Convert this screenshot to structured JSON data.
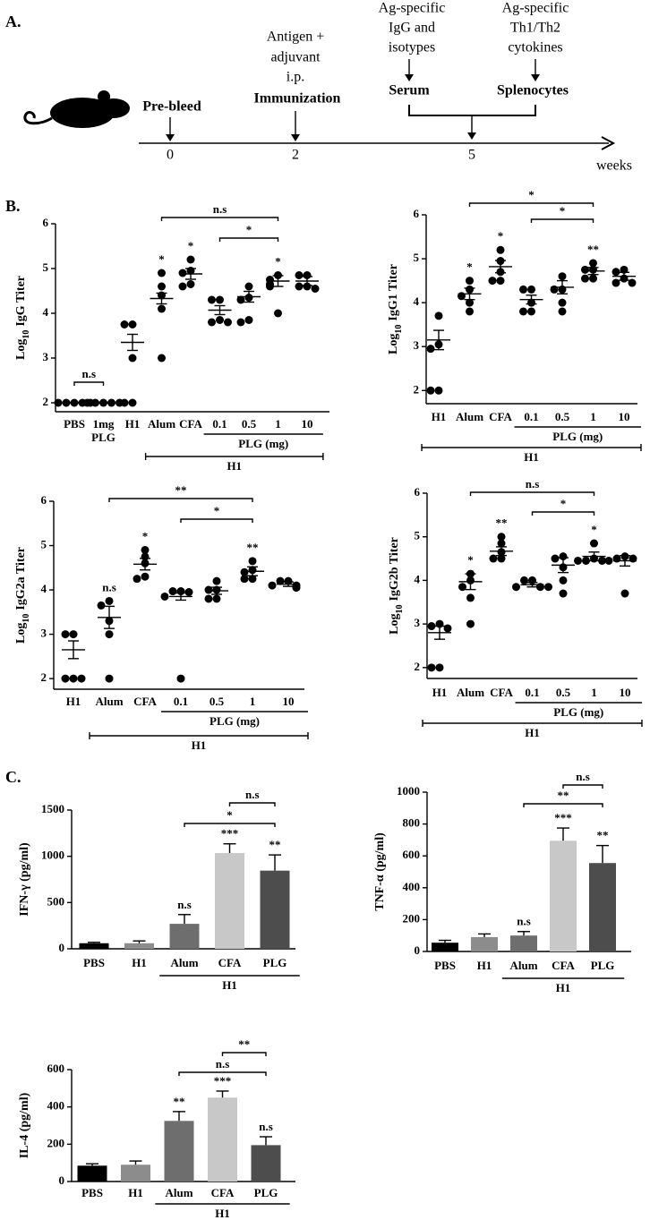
{
  "panel_labels": [
    "A.",
    "B.",
    "C."
  ],
  "diagram": {
    "events": [
      {
        "label": "Pre-bleed"
      },
      {
        "lines": [
          "Antigen +",
          "adjuvant",
          "i.p."
        ],
        "label": "Immunization"
      },
      {
        "lines": [
          "Ag-specific",
          "IgG and",
          "isotypes"
        ],
        "label": "Serum"
      },
      {
        "lines": [
          "Ag-specific",
          "Th1/Th2",
          "cytokines"
        ],
        "label": "Splenocytes"
      }
    ],
    "timeline": {
      "ticks": [
        0,
        2,
        5
      ],
      "unit": "weeks"
    }
  },
  "chart_data": [
    {
      "type": "dot",
      "ylabel_parts": [
        "Log",
        "10",
        "IgG Titer"
      ],
      "color": "#000000",
      "categories": [
        "PBS",
        "1mg PLG",
        "H1",
        "Alum",
        "CFA",
        "0.1",
        "0.5",
        "1",
        "10"
      ],
      "points": [
        [
          2,
          2,
          2,
          2,
          2
        ],
        [
          2,
          2,
          2,
          2,
          2
        ],
        [
          3.75,
          3.75,
          3.0,
          2,
          2
        ],
        [
          4.9,
          4.6,
          4.4,
          4.1,
          3.0
        ],
        [
          5.2,
          4.95,
          4.9,
          4.65,
          4.6
        ],
        [
          4.3,
          4.3,
          3.85,
          3.8,
          3.8
        ],
        [
          4.6,
          4.35,
          4.3,
          3.85,
          3.8
        ],
        [
          4.85,
          4.75,
          4.65,
          4.6,
          4.0
        ],
        [
          4.85,
          4.85,
          4.6,
          4.6,
          4.55
        ]
      ],
      "means": [
        2,
        2,
        3.35,
        4.33,
        4.88,
        4.07,
        4.37,
        4.72,
        4.72
      ],
      "sems": [
        0,
        0,
        0.18,
        0.12,
        0.12,
        0.1,
        0.12,
        0.12,
        0.1
      ],
      "stars": [
        null,
        null,
        null,
        "*",
        "*",
        null,
        null,
        "*",
        null
      ],
      "brackets": [
        {
          "from": 0,
          "to": 1,
          "label": "n.s"
        },
        {
          "from": 3,
          "to": 7,
          "label": "n.s"
        },
        {
          "from": 5,
          "to": 7,
          "label": "*"
        }
      ],
      "groups": [
        {
          "label": "PLG (mg)",
          "from": 5,
          "to": 8
        },
        {
          "label": "H1",
          "from": 3,
          "to": 8
        }
      ],
      "ylim": [
        1.8,
        6
      ],
      "yticks": [
        2,
        3,
        4,
        5,
        6
      ]
    },
    {
      "type": "dot",
      "ylabel_parts": [
        "Log",
        "10",
        "IgG1 Titer"
      ],
      "color": "#000000",
      "categories": [
        "H1",
        "Alum",
        "CFA",
        "0.1",
        "0.5",
        "1",
        "10"
      ],
      "points": [
        [
          3.7,
          3.05,
          2.95,
          2,
          2
        ],
        [
          4.5,
          4.3,
          4.15,
          4.0,
          3.8
        ],
        [
          5.2,
          4.95,
          4.7,
          4.5,
          4.5
        ],
        [
          4.3,
          4.3,
          4.0,
          3.8,
          3.8
        ],
        [
          4.6,
          4.3,
          4.3,
          4.0,
          3.8
        ],
        [
          4.9,
          4.75,
          4.75,
          4.55,
          4.55
        ],
        [
          4.75,
          4.7,
          4.55,
          4.45,
          4.45
        ]
      ],
      "means": [
        3.15,
        4.2,
        4.82,
        4.07,
        4.35,
        4.72,
        4.6
      ],
      "sems": [
        0.22,
        0.13,
        0.14,
        0.1,
        0.15,
        0.08,
        0.09
      ],
      "stars": [
        null,
        "*",
        "*",
        null,
        null,
        "**",
        null
      ],
      "brackets": [
        {
          "from": 1,
          "to": 5,
          "label": "*"
        },
        {
          "from": 3,
          "to": 5,
          "label": "*"
        }
      ],
      "groups": [
        {
          "label": "PLG (mg)",
          "from": 3,
          "to": 6
        },
        {
          "label": "H1",
          "from": 0,
          "to": 6
        }
      ],
      "ylim": [
        1.7,
        6
      ],
      "yticks": [
        2,
        3,
        4,
        5,
        6
      ]
    },
    {
      "type": "dot",
      "ylabel_parts": [
        "Log",
        "10",
        "IgG2a Titer"
      ],
      "color": "#000000",
      "categories": [
        "H1",
        "Alum",
        "CFA",
        "0.1",
        "0.5",
        "1",
        "10"
      ],
      "points": [
        [
          3.0,
          3.0,
          2,
          2,
          2
        ],
        [
          3.75,
          3.65,
          3.3,
          3.0,
          2.0
        ],
        [
          4.9,
          4.75,
          4.6,
          4.3,
          4.25
        ],
        [
          3.97,
          3.97,
          3.95,
          3.85,
          2.0
        ],
        [
          4.2,
          4.0,
          4.0,
          3.8,
          3.8
        ],
        [
          4.65,
          4.45,
          4.4,
          4.25,
          4.25
        ],
        [
          4.2,
          4.2,
          4.1,
          4.1,
          4.05
        ]
      ],
      "means": [
        2.65,
        3.38,
        4.58,
        3.85,
        3.98,
        4.42,
        4.13
      ],
      "sems": [
        0.2,
        0.25,
        0.13,
        0.08,
        0.08,
        0.1,
        0.05
      ],
      "stars": [
        null,
        "n.s",
        "*",
        null,
        null,
        "**",
        null
      ],
      "brackets": [
        {
          "from": 1,
          "to": 5,
          "label": "**"
        },
        {
          "from": 3,
          "to": 5,
          "label": "*"
        }
      ],
      "groups": [
        {
          "label": "PLG (mg)",
          "from": 3,
          "to": 6
        },
        {
          "label": "H1",
          "from": 1,
          "to": 6
        }
      ],
      "ylim": [
        1.76,
        6
      ],
      "yticks": [
        2,
        3,
        4,
        5,
        6
      ]
    },
    {
      "type": "dot",
      "ylabel_parts": [
        "Log",
        "10",
        "IgG2b Titer"
      ],
      "color": "#000000",
      "categories": [
        "H1",
        "Alum",
        "CFA",
        "0.1",
        "0.5",
        "1",
        "10"
      ],
      "points": [
        [
          3.0,
          2.95,
          2.9,
          2,
          2
        ],
        [
          4.15,
          4.0,
          3.85,
          3.6,
          3.0
        ],
        [
          5.0,
          4.85,
          4.65,
          4.5,
          4.5
        ],
        [
          4.0,
          4.0,
          3.85,
          3.85,
          3.85
        ],
        [
          4.55,
          4.5,
          4.3,
          4.0,
          3.7
        ],
        [
          4.85,
          4.5,
          4.45,
          4.45,
          4.45
        ],
        [
          4.55,
          4.5,
          4.5,
          4.45,
          3.7
        ]
      ],
      "means": [
        2.8,
        3.97,
        4.67,
        3.9,
        4.35,
        4.55,
        4.45
      ],
      "sems": [
        0.15,
        0.18,
        0.1,
        0.05,
        0.17,
        0.1,
        0.12
      ],
      "stars": [
        null,
        "*",
        "**",
        null,
        null,
        "*",
        null
      ],
      "brackets": [
        {
          "from": 1,
          "to": 5,
          "label": "n.s"
        },
        {
          "from": 3,
          "to": 5,
          "label": "*"
        }
      ],
      "groups": [
        {
          "label": "PLG (mg)",
          "from": 3,
          "to": 6
        },
        {
          "label": "H1",
          "from": 0,
          "to": 6
        }
      ],
      "ylim": [
        1.75,
        6
      ],
      "yticks": [
        2,
        3,
        4,
        5,
        6
      ]
    },
    {
      "type": "bar",
      "ylabel": "IFN-γ (pg/ml)",
      "categories": [
        "PBS",
        "H1",
        "Alum",
        "CFA",
        "PLG"
      ],
      "values": [
        60,
        60,
        270,
        1035,
        845
      ],
      "errors": [
        10,
        25,
        100,
        100,
        170
      ],
      "colors": [
        "#000000",
        "#8c8c8c",
        "#6e6e6e",
        "#c8c8c8",
        "#4d4d4d"
      ],
      "stars": [
        null,
        null,
        "n.s",
        "***",
        "**"
      ],
      "brackets": [
        {
          "from": 2,
          "to": 4,
          "label": "*"
        },
        {
          "from": 3,
          "to": 4,
          "label": "n.s"
        }
      ],
      "groups": [
        {
          "label": "H1",
          "from": 2,
          "to": 4
        }
      ],
      "ylim": [
        0,
        1500
      ],
      "yticks": [
        0,
        500,
        1000,
        1500
      ]
    },
    {
      "type": "bar",
      "ylabel": "TNF-α (pg/ml)",
      "categories": [
        "PBS",
        "H1",
        "Alum",
        "CFA",
        "PLG"
      ],
      "values": [
        55,
        90,
        100,
        695,
        555
      ],
      "errors": [
        15,
        20,
        25,
        80,
        110
      ],
      "colors": [
        "#000000",
        "#8c8c8c",
        "#6e6e6e",
        "#c8c8c8",
        "#4d4d4d"
      ],
      "stars": [
        null,
        null,
        "n.s",
        "***",
        "**"
      ],
      "brackets": [
        {
          "from": 2,
          "to": 4,
          "label": "**"
        },
        {
          "from": 3,
          "to": 4,
          "label": "n.s"
        }
      ],
      "groups": [
        {
          "label": "H1",
          "from": 2,
          "to": 4
        }
      ],
      "ylim": [
        0,
        1000
      ],
      "yticks": [
        0,
        200,
        400,
        600,
        800,
        1000
      ]
    },
    {
      "type": "bar",
      "ylabel": "IL-4 (pg/ml)",
      "categories": [
        "PBS",
        "H1",
        "Alum",
        "CFA",
        "PLG"
      ],
      "values": [
        85,
        90,
        325,
        450,
        195
      ],
      "errors": [
        10,
        20,
        50,
        35,
        45
      ],
      "colors": [
        "#000000",
        "#8c8c8c",
        "#6e6e6e",
        "#c8c8c8",
        "#4d4d4d"
      ],
      "stars": [
        null,
        null,
        "**",
        "***",
        "n.s"
      ],
      "brackets": [
        {
          "from": 2,
          "to": 4,
          "label": "n.s"
        },
        {
          "from": 3,
          "to": 4,
          "label": "**"
        }
      ],
      "groups": [
        {
          "label": "H1",
          "from": 2,
          "to": 4
        }
      ],
      "ylim": [
        0,
        600
      ],
      "yticks": [
        0,
        200,
        400,
        600
      ]
    }
  ]
}
